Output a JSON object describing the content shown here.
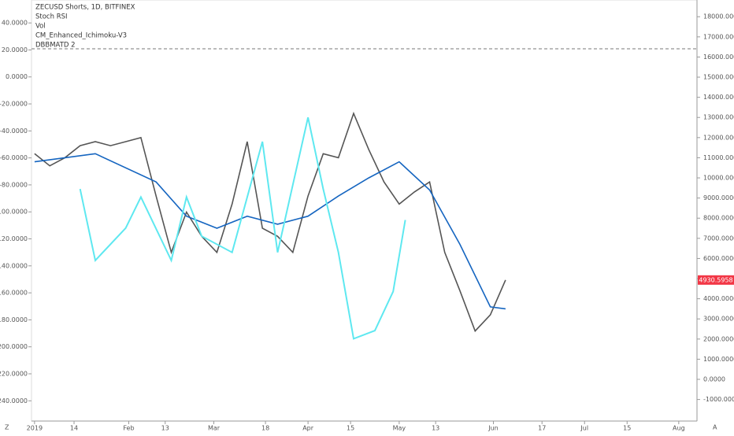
{
  "chart_data": {
    "type": "line",
    "title": "ZECUSD Shorts, 1D, BITFINEX",
    "indicators": [
      "Stoch RSI",
      "Vol",
      "CM_Enhanced_Ichimoku-V3",
      "DBBMATD 2"
    ],
    "corner_left": "Z",
    "corner_right": "A",
    "last_price": {
      "value": 4930.5958,
      "label": "4930.5958",
      "color": "#f23645"
    },
    "xlim": [
      -1,
      218
    ],
    "xticks": [
      {
        "value": 0,
        "label": "2019"
      },
      {
        "value": 13,
        "label": "14"
      },
      {
        "value": 31,
        "label": "Feb"
      },
      {
        "value": 43,
        "label": "13"
      },
      {
        "value": 59,
        "label": "Mar"
      },
      {
        "value": 76,
        "label": "18"
      },
      {
        "value": 90,
        "label": "Apr"
      },
      {
        "value": 104,
        "label": "15"
      },
      {
        "value": 120,
        "label": "May"
      },
      {
        "value": 132,
        "label": "13"
      },
      {
        "value": 151,
        "label": "Jun"
      },
      {
        "value": 167,
        "label": "17"
      },
      {
        "value": 181,
        "label": "Jul"
      },
      {
        "value": 195,
        "label": "15"
      },
      {
        "value": 212,
        "label": "Aug"
      }
    ],
    "ylim": [
      -255,
      57
    ],
    "yticks": [
      {
        "value": 40,
        "label": "40.0000"
      },
      {
        "value": 20,
        "label": "20.0000"
      },
      {
        "value": 0,
        "label": "0.0000"
      },
      {
        "value": -20,
        "label": "-20.0000"
      },
      {
        "value": -40,
        "label": "-40.0000"
      },
      {
        "value": -60,
        "label": "-60.0000"
      },
      {
        "value": -80,
        "label": "-80.0000"
      },
      {
        "value": -100,
        "label": "-100.0000"
      },
      {
        "value": -120,
        "label": "-120.0000"
      },
      {
        "value": -140,
        "label": "-140.0000"
      },
      {
        "value": -160,
        "label": "-160.0000"
      },
      {
        "value": -180,
        "label": "-180.0000"
      },
      {
        "value": -200,
        "label": "-200.0000"
      },
      {
        "value": -220,
        "label": "-220.0000"
      },
      {
        "value": -240,
        "label": "-240.0000"
      }
    ],
    "y2lim": [
      -2070,
      18830
    ],
    "y2ticks": [
      {
        "value": 18000,
        "label": "18000.0000"
      },
      {
        "value": 17000,
        "label": "17000.0000"
      },
      {
        "value": 16000,
        "label": "16000.0000"
      },
      {
        "value": 15000,
        "label": "15000.0000"
      },
      {
        "value": 14000,
        "label": "14000.0000"
      },
      {
        "value": 13000,
        "label": "13000.0000"
      },
      {
        "value": 12000,
        "label": "12000.0000"
      },
      {
        "value": 11000,
        "label": "11000.0000"
      },
      {
        "value": 10000,
        "label": "10000.0000"
      },
      {
        "value": 9000,
        "label": "9000.0000"
      },
      {
        "value": 8000,
        "label": "8000.0000"
      },
      {
        "value": 7000,
        "label": "7000.0000"
      },
      {
        "value": 6000,
        "label": "6000.0000"
      },
      {
        "value": 5000,
        "label": "5000.0000"
      },
      {
        "value": 4000,
        "label": "4000.0000"
      },
      {
        "value": 3000,
        "label": "3000.0000"
      },
      {
        "value": 2000,
        "label": "2000.0000"
      },
      {
        "value": 1000,
        "label": "1000.0000"
      },
      {
        "value": 0,
        "label": "0.0000"
      },
      {
        "value": -1000,
        "label": "-1000.0000"
      }
    ],
    "series": [
      {
        "axis": "y2",
        "color": "#555555",
        "x": [
          0,
          5,
          10,
          15,
          20,
          25,
          30,
          35,
          40,
          45,
          50,
          55,
          60,
          65,
          70,
          75,
          80,
          85,
          90,
          95,
          100,
          105,
          110,
          115,
          120,
          125,
          130,
          135,
          140,
          145,
          150,
          155
        ],
        "values": [
          11200,
          10600,
          11000,
          11600,
          11800,
          11600,
          11800,
          12000,
          9100,
          6300,
          8300,
          7100,
          6300,
          8700,
          11800,
          7500,
          7100,
          6300,
          9100,
          11200,
          11000,
          13200,
          11400,
          9800,
          8700,
          9300,
          9800,
          6300,
          4400,
          2400,
          3200,
          4930.5958
        ]
      },
      {
        "axis": "y2",
        "color": "#1565c0",
        "x": [
          0,
          20,
          40,
          50,
          60,
          70,
          80,
          90,
          100,
          110,
          120,
          130,
          140,
          150,
          155
        ],
        "values": [
          10800,
          11200,
          9800,
          8100,
          7500,
          8100,
          7700,
          8100,
          9100,
          10000,
          10800,
          9400,
          6700,
          3600,
          3500
        ]
      },
      {
        "color": "#5ee8f0",
        "x": [
          15,
          20,
          30,
          35,
          45,
          50,
          55,
          65,
          75,
          80,
          90,
          95,
          100,
          105,
          112,
          118,
          122
        ],
        "values": [
          -83,
          -136,
          -112,
          -89,
          -136,
          -89,
          -118,
          -130,
          -48,
          -130,
          -30,
          -83,
          -130,
          -194,
          -188,
          -159,
          -106
        ]
      }
    ]
  }
}
